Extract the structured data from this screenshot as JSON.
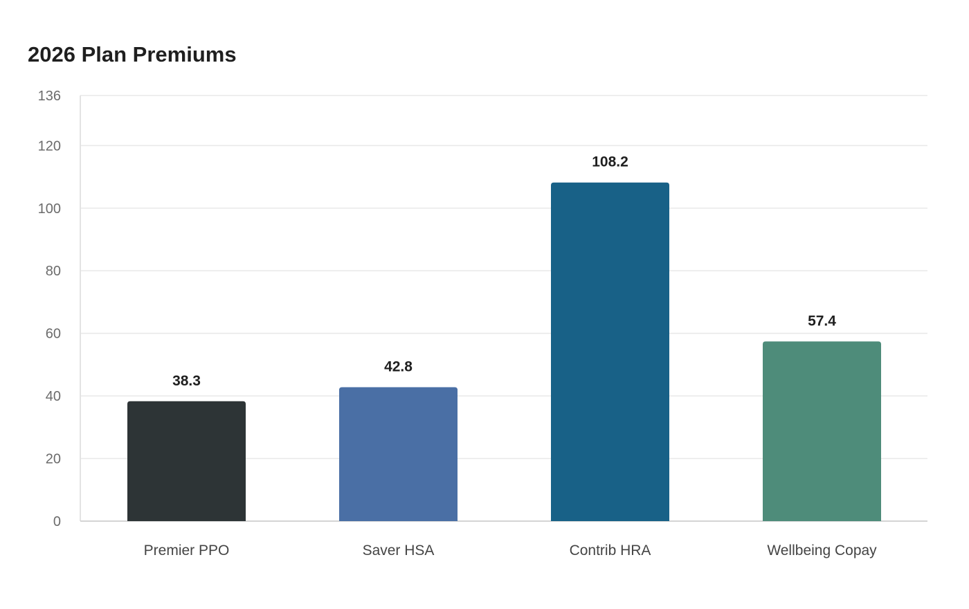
{
  "chart_data": {
    "type": "bar",
    "title": "2026 Plan Premiums",
    "xlabel": "",
    "ylabel": "",
    "categories": [
      "Premier PPO",
      "Saver HSA",
      "Contrib HRA",
      "Wellbeing Copay"
    ],
    "values": [
      38.3,
      42.8,
      108.2,
      57.4
    ],
    "value_labels": [
      "38.3",
      "42.8",
      "108.2",
      "57.4"
    ],
    "colors": [
      "#2d3436",
      "#4a6fa5",
      "#186187",
      "#4e8c7a"
    ],
    "ylim": [
      0,
      136
    ],
    "yticks": [
      0,
      20,
      40,
      60,
      80,
      100,
      120,
      136
    ],
    "grid": true,
    "legend": "none"
  }
}
